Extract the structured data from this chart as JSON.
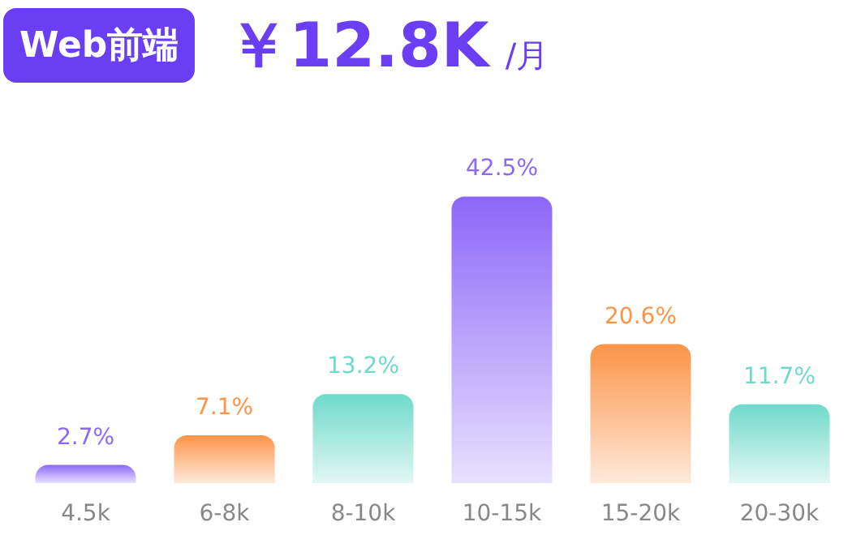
{
  "chart_data": {
    "type": "bar",
    "title": "Web前端",
    "subtitle": "￥12.8K /月",
    "categories": [
      "4.5k",
      "6-8k",
      "8-10k",
      "10-15k",
      "15-20k",
      "20-30k"
    ],
    "values": [
      2.7,
      7.1,
      13.2,
      42.5,
      20.6,
      11.7
    ],
    "colors": [
      "#8c67f8",
      "#fc9448",
      "#6fdac9",
      "#8c67f8",
      "#fc9448",
      "#6fdac9"
    ],
    "value_labels": [
      "2.7%",
      "7.1%",
      "13.2%",
      "42.5%",
      "20.6%",
      "11.7%"
    ]
  }
}
